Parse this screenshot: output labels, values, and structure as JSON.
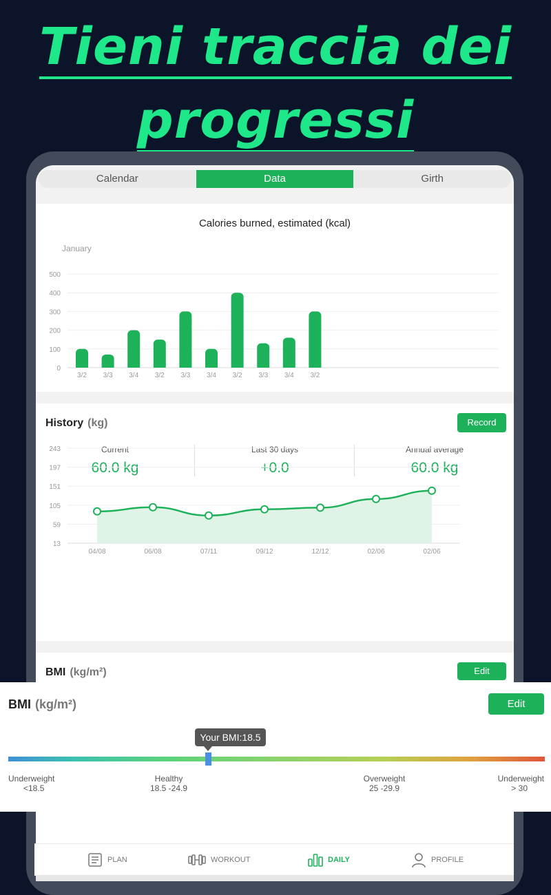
{
  "headline": {
    "line1": "Tieni traccia dei",
    "line2": "progressi"
  },
  "tabs": [
    {
      "label": "Calendar",
      "active": false
    },
    {
      "label": "Data",
      "active": true
    },
    {
      "label": "Girth",
      "active": false
    }
  ],
  "calories": {
    "title": "Calories burned, estimated (kcal)",
    "month": "January"
  },
  "history": {
    "title": "History",
    "unit": "(kg)",
    "record_label": "Record",
    "stats": [
      {
        "label": "Current",
        "value": "60.0 kg"
      },
      {
        "label": "Last 30 days",
        "value": "+0.0"
      },
      {
        "label": "Annual average",
        "value": "60.0 kg"
      }
    ]
  },
  "bmi_small": {
    "title": "BMI",
    "unit": "(kg/m²)",
    "edit_label": "Edit"
  },
  "bmi": {
    "title": "BMI",
    "unit": "(kg/m²)",
    "edit_label": "Edit",
    "tooltip": "Your BMI:18.5",
    "categories": [
      {
        "name": "Underweight",
        "range": "<18.5"
      },
      {
        "name": "Healthy",
        "range": "18.5 -24.9"
      },
      {
        "name": "Overweight",
        "range": "25 -29.9"
      },
      {
        "name": "Underweight",
        "range": "> 30"
      }
    ]
  },
  "bottom_nav": [
    {
      "label": "PLAN",
      "icon": "plan-icon",
      "active": false
    },
    {
      "label": "WORKOUT",
      "icon": "dumbbell-icon",
      "active": false
    },
    {
      "label": "DAILY",
      "icon": "bar-chart-icon",
      "active": true
    },
    {
      "label": "PROFILE",
      "icon": "person-icon",
      "active": false
    }
  ],
  "colors": {
    "accent": "#1db25a",
    "headline": "#1ee88a",
    "background": "#0b1428"
  },
  "chart_data": [
    {
      "type": "bar",
      "title": "Calories burned, estimated (kcal)",
      "categories": [
        "3/2",
        "3/3",
        "3/4",
        "3/2",
        "3/3",
        "3/4",
        "3/2",
        "3/3",
        "3/4",
        "3/2"
      ],
      "values": [
        100,
        70,
        200,
        150,
        300,
        100,
        400,
        130,
        160,
        300
      ],
      "yticks": [
        0,
        100,
        200,
        300,
        400,
        500
      ],
      "ylim": [
        0,
        500
      ],
      "grid": true
    },
    {
      "type": "area",
      "x": [
        "04/08",
        "06/08",
        "07/11",
        "09/12",
        "12/12",
        "02/06",
        "02/06"
      ],
      "values": [
        90,
        100,
        80,
        95,
        99,
        120,
        140
      ],
      "yticks": [
        13,
        59,
        105,
        151,
        197,
        243
      ],
      "ylim": [
        13,
        243
      ],
      "grid": true
    }
  ]
}
